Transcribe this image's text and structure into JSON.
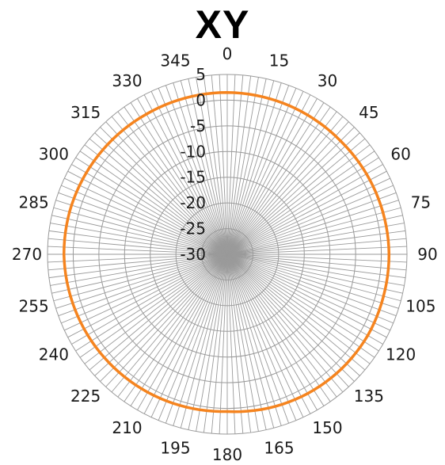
{
  "chart_data": {
    "type": "radar",
    "title": "XY",
    "angle_ticks": [
      "0",
      "15",
      "30",
      "45",
      "60",
      "75",
      "90",
      "105",
      "120",
      "135",
      "150",
      "165",
      "180",
      "195",
      "210",
      "225",
      "240",
      "255",
      "270",
      "285",
      "300",
      "315",
      "330",
      "345"
    ],
    "angle_step_minor": 2.5,
    "radial_ticks": [
      "5",
      "0",
      "-5",
      "-10",
      "-15",
      "-20",
      "-25",
      "-30"
    ],
    "rlim": [
      -30,
      5
    ],
    "grid": true,
    "series": [
      {
        "color": "#F5841F",
        "values": [
          {
            "angle": 0,
            "value": 1.5
          },
          {
            "angle": 15,
            "value": 1.4
          },
          {
            "angle": 30,
            "value": 1.3
          },
          {
            "angle": 45,
            "value": 1.2
          },
          {
            "angle": 60,
            "value": 1.3
          },
          {
            "angle": 75,
            "value": 1.4
          },
          {
            "angle": 90,
            "value": 1.5
          },
          {
            "angle": 105,
            "value": 1.5
          },
          {
            "angle": 120,
            "value": 1.6
          },
          {
            "angle": 135,
            "value": 1.5
          },
          {
            "angle": 150,
            "value": 1.3
          },
          {
            "angle": 165,
            "value": 1.0
          },
          {
            "angle": 180,
            "value": 0.6
          },
          {
            "angle": 195,
            "value": 0.8
          },
          {
            "angle": 210,
            "value": 1.0
          },
          {
            "angle": 225,
            "value": 1.2
          },
          {
            "angle": 240,
            "value": 1.4
          },
          {
            "angle": 255,
            "value": 1.6
          },
          {
            "angle": 270,
            "value": 1.8
          },
          {
            "angle": 285,
            "value": 1.8
          },
          {
            "angle": 300,
            "value": 1.7
          },
          {
            "angle": 315,
            "value": 1.6
          },
          {
            "angle": 330,
            "value": 1.5
          },
          {
            "angle": 345,
            "value": 1.5
          }
        ]
      }
    ],
    "colors": {
      "grid": "#9a9a9a",
      "text": "#1a1a1a",
      "series": "#F5841F"
    }
  }
}
